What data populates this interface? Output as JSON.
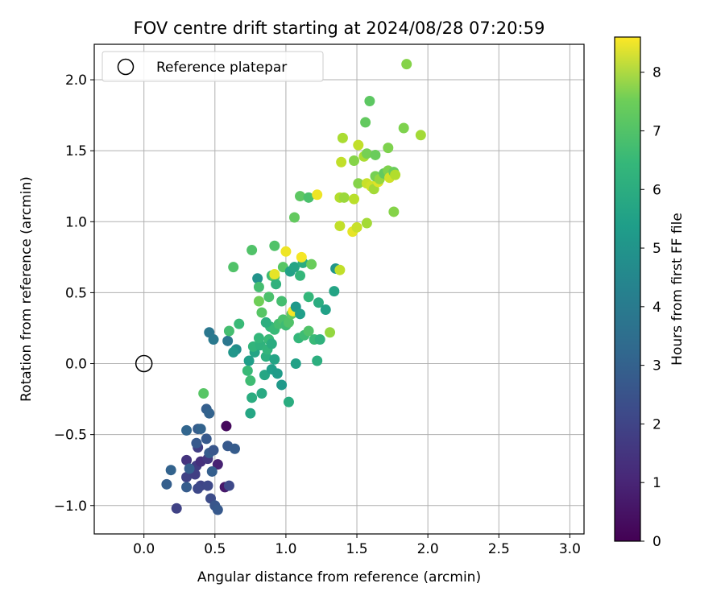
{
  "chart_data": {
    "type": "scatter",
    "title": "FOV centre drift starting at 2024/08/28 07:20:59",
    "xlabel": "Angular distance from reference (arcmin)",
    "ylabel": "Rotation from reference (arcmin)",
    "xlim": [
      -0.35,
      3.1
    ],
    "ylim": [
      -1.2,
      2.25
    ],
    "xticks": [
      0.0,
      0.5,
      1.0,
      1.5,
      2.0,
      2.5,
      3.0
    ],
    "xtick_labels": [
      "0.0",
      "0.5",
      "1.0",
      "1.5",
      "2.0",
      "2.5",
      "3.0"
    ],
    "yticks": [
      -1.0,
      -0.5,
      0.0,
      0.5,
      1.0,
      1.5,
      2.0
    ],
    "ytick_labels": [
      "−1.0",
      "−0.5",
      "0.0",
      "0.5",
      "1.0",
      "1.5",
      "2.0"
    ],
    "grid": true,
    "legend": {
      "placement": "top-left",
      "entries": [
        "Reference platepar"
      ]
    },
    "reference_point": {
      "x": 0.0,
      "y": 0.0
    },
    "colorbar": {
      "label": "Hours from first FF file",
      "min": 0,
      "max": 8.6,
      "ticks": [
        0,
        1,
        2,
        3,
        4,
        5,
        6,
        7,
        8
      ],
      "tick_labels": [
        "0",
        "1",
        "2",
        "3",
        "4",
        "5",
        "6",
        "7",
        "8"
      ],
      "colormap": "viridis"
    },
    "points": [
      [
        0.58,
        -0.44,
        0.2
      ],
      [
        0.52,
        -0.71,
        0.8
      ],
      [
        0.57,
        -0.87,
        0.6
      ],
      [
        0.3,
        -0.68,
        1.3
      ],
      [
        0.37,
        -0.72,
        1.5
      ],
      [
        0.4,
        -0.69,
        1.2
      ],
      [
        0.38,
        -0.59,
        1.6
      ],
      [
        0.45,
        -0.67,
        1.4
      ],
      [
        0.3,
        -0.8,
        1.7
      ],
      [
        0.36,
        -0.78,
        1.6
      ],
      [
        0.4,
        -0.86,
        1.8
      ],
      [
        0.45,
        -0.86,
        1.9
      ],
      [
        0.23,
        -1.02,
        1.7
      ],
      [
        0.38,
        -0.88,
        1.9
      ],
      [
        0.47,
        -0.95,
        2.0
      ],
      [
        0.5,
        -1.0,
        2.3
      ],
      [
        0.52,
        -1.03,
        2.4
      ],
      [
        0.6,
        -0.86,
        1.9
      ],
      [
        0.16,
        -0.85,
        2.6
      ],
      [
        0.19,
        -0.75,
        2.7
      ],
      [
        0.3,
        -0.87,
        2.5
      ],
      [
        0.32,
        -0.74,
        2.6
      ],
      [
        0.48,
        -0.76,
        2.6
      ],
      [
        0.46,
        -0.63,
        2.5
      ],
      [
        0.37,
        -0.56,
        2.4
      ],
      [
        0.38,
        -0.46,
        2.5
      ],
      [
        0.44,
        -0.53,
        2.4
      ],
      [
        0.49,
        -0.61,
        2.3
      ],
      [
        0.59,
        -0.58,
        2.4
      ],
      [
        0.64,
        -0.6,
        2.5
      ],
      [
        0.3,
        -0.47,
        2.8
      ],
      [
        0.4,
        -0.46,
        2.7
      ],
      [
        0.44,
        -0.32,
        2.6
      ],
      [
        0.46,
        -0.35,
        2.7
      ],
      [
        0.46,
        0.22,
        3.4
      ],
      [
        0.49,
        0.17,
        3.5
      ],
      [
        0.59,
        0.16,
        3.4
      ],
      [
        0.42,
        -0.21,
        6.3
      ],
      [
        0.65,
        0.1,
        4.2
      ],
      [
        0.63,
        0.08,
        4.5
      ],
      [
        0.6,
        0.23,
        6.0
      ],
      [
        0.67,
        0.28,
        5.8
      ],
      [
        0.63,
        0.68,
        6.2
      ],
      [
        0.75,
        -0.35,
        5.1
      ],
      [
        0.76,
        -0.24,
        5.3
      ],
      [
        0.74,
        0.02,
        4.8
      ],
      [
        0.73,
        -0.05,
        5.8
      ],
      [
        0.75,
        -0.12,
        5.9
      ],
      [
        0.78,
        0.08,
        5.0
      ],
      [
        0.77,
        0.12,
        5.6
      ],
      [
        0.82,
        0.13,
        5.5
      ],
      [
        0.81,
        0.18,
        5.7
      ],
      [
        0.83,
        -0.21,
        5.2
      ],
      [
        0.85,
        -0.08,
        5.1
      ],
      [
        0.86,
        0.05,
        5.4
      ],
      [
        0.87,
        0.1,
        5.6
      ],
      [
        0.88,
        0.17,
        5.8
      ],
      [
        0.89,
        0.26,
        5.7
      ],
      [
        0.86,
        0.29,
        5.4
      ],
      [
        0.9,
        0.14,
        5.3
      ],
      [
        0.92,
        0.03,
        5.0
      ],
      [
        0.9,
        -0.04,
        4.8
      ],
      [
        0.94,
        -0.07,
        4.7
      ],
      [
        0.97,
        -0.15,
        4.6
      ],
      [
        1.02,
        -0.27,
        5.3
      ],
      [
        1.07,
        0.0,
        4.9
      ],
      [
        0.92,
        0.24,
        5.8
      ],
      [
        0.95,
        0.28,
        6.0
      ],
      [
        0.98,
        0.31,
        6.1
      ],
      [
        1.0,
        0.27,
        5.9
      ],
      [
        1.02,
        0.29,
        6.2
      ],
      [
        1.04,
        0.35,
        6.4
      ],
      [
        1.05,
        0.37,
        8.5
      ],
      [
        1.07,
        0.4,
        4.6
      ],
      [
        1.1,
        0.35,
        4.8
      ],
      [
        1.09,
        0.18,
        5.7
      ],
      [
        1.13,
        0.2,
        5.9
      ],
      [
        1.16,
        0.23,
        6.2
      ],
      [
        1.2,
        0.17,
        5.8
      ],
      [
        1.24,
        0.17,
        5.5
      ],
      [
        1.22,
        0.02,
        5.4
      ],
      [
        1.23,
        0.43,
        5.3
      ],
      [
        1.28,
        0.38,
        4.9
      ],
      [
        1.31,
        0.22,
        7.2
      ],
      [
        1.34,
        0.51,
        5.0
      ],
      [
        1.35,
        0.67,
        4.5
      ],
      [
        1.38,
        0.66,
        7.8
      ],
      [
        1.16,
        0.47,
        5.7
      ],
      [
        0.76,
        0.8,
        6.2
      ],
      [
        0.8,
        0.6,
        4.4
      ],
      [
        0.81,
        0.54,
        6.0
      ],
      [
        0.81,
        0.44,
        6.7
      ],
      [
        0.83,
        0.36,
        6.3
      ],
      [
        0.88,
        0.47,
        6.1
      ],
      [
        0.9,
        0.62,
        5.9
      ],
      [
        0.92,
        0.61,
        6.3
      ],
      [
        0.93,
        0.56,
        5.5
      ],
      [
        0.97,
        0.44,
        6.0
      ],
      [
        0.98,
        0.68,
        6.3
      ],
      [
        1.03,
        0.65,
        4.9
      ],
      [
        1.06,
        0.68,
        5.0
      ],
      [
        1.1,
        0.62,
        5.7
      ],
      [
        1.12,
        0.71,
        5.3
      ],
      [
        1.18,
        0.7,
        6.6
      ],
      [
        0.92,
        0.63,
        8.3
      ],
      [
        1.0,
        0.79,
        8.4
      ],
      [
        1.11,
        0.75,
        8.5
      ],
      [
        0.92,
        0.83,
        6.2
      ],
      [
        1.06,
        1.03,
        6.5
      ],
      [
        1.1,
        1.18,
        6.4
      ],
      [
        1.16,
        1.17,
        6.1
      ],
      [
        1.22,
        1.19,
        8.4
      ],
      [
        1.38,
        0.97,
        7.8
      ],
      [
        1.47,
        0.93,
        8.3
      ],
      [
        1.5,
        0.96,
        7.9
      ],
      [
        1.57,
        0.99,
        7.4
      ],
      [
        1.76,
        1.07,
        7.0
      ],
      [
        1.38,
        1.17,
        7.6
      ],
      [
        1.41,
        1.17,
        7.3
      ],
      [
        1.48,
        1.16,
        7.7
      ],
      [
        1.51,
        1.27,
        7.0
      ],
      [
        1.57,
        1.27,
        7.9
      ],
      [
        1.6,
        1.25,
        8.0
      ],
      [
        1.62,
        1.23,
        7.4
      ],
      [
        1.65,
        1.28,
        8.2
      ],
      [
        1.63,
        1.32,
        6.8
      ],
      [
        1.66,
        1.3,
        7.2
      ],
      [
        1.69,
        1.34,
        6.5
      ],
      [
        1.72,
        1.36,
        6.9
      ],
      [
        1.73,
        1.31,
        8.0
      ],
      [
        1.76,
        1.35,
        6.6
      ],
      [
        1.77,
        1.33,
        7.6
      ],
      [
        1.39,
        1.42,
        7.8
      ],
      [
        1.48,
        1.43,
        7.0
      ],
      [
        1.55,
        1.46,
        7.5
      ],
      [
        1.57,
        1.48,
        6.8
      ],
      [
        1.63,
        1.47,
        6.6
      ],
      [
        1.72,
        1.52,
        6.9
      ],
      [
        1.51,
        1.54,
        7.8
      ],
      [
        1.4,
        1.59,
        7.5
      ],
      [
        1.56,
        1.7,
        6.5
      ],
      [
        1.59,
        1.85,
        6.4
      ],
      [
        1.83,
        1.66,
        6.9
      ],
      [
        1.95,
        1.61,
        7.4
      ],
      [
        1.85,
        2.11,
        7.0
      ]
    ]
  }
}
